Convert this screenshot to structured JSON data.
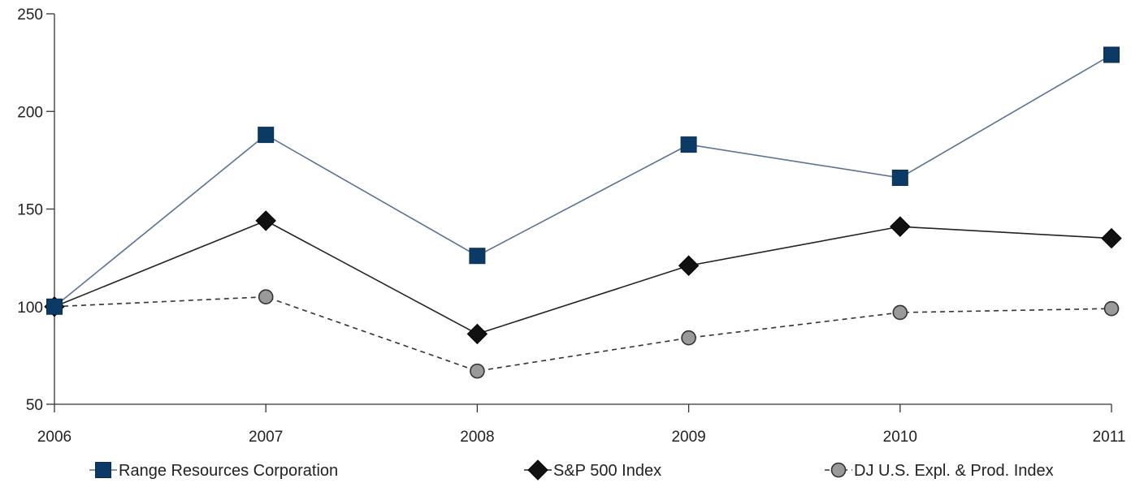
{
  "chart_data": {
    "type": "line",
    "title": "",
    "xlabel": "",
    "ylabel": "",
    "x": [
      "2006",
      "2007",
      "2008",
      "2009",
      "2010",
      "2011"
    ],
    "ylim": [
      50,
      250
    ],
    "yticks": [
      50,
      100,
      150,
      200,
      250
    ],
    "grid": false,
    "legend": "bottom",
    "series": [
      {
        "name": "Range Resources Corporation",
        "values": [
          100,
          188,
          126,
          183,
          166,
          229
        ],
        "color": "#0b3a66",
        "line_color": "#5a7394",
        "marker": "square",
        "dash": "solid"
      },
      {
        "name": "S&P 500 Index",
        "values": [
          100,
          144,
          86,
          121,
          141,
          135
        ],
        "color": "#111111",
        "line_color": "#222222",
        "marker": "diamond",
        "dash": "solid"
      },
      {
        "name": "DJ U.S. Expl. & Prod. Index",
        "values": [
          100,
          105,
          67,
          84,
          97,
          99
        ],
        "color": "#9a9a9a",
        "line_color": "#333333",
        "marker": "circle",
        "dash": "dashed"
      }
    ]
  }
}
